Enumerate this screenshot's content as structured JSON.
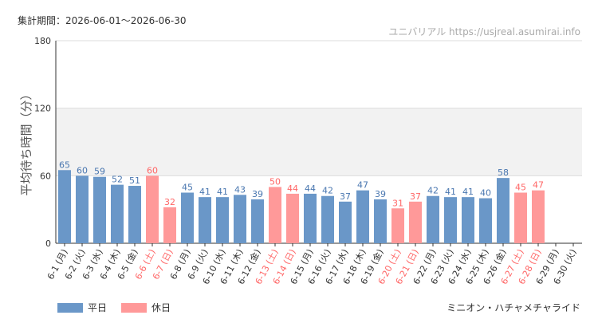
{
  "header": {
    "period": "集計期間：2026-06-01〜2026-06-30",
    "watermark": "ユニバリアル  https://usjreal.asumirai.info"
  },
  "footer": {
    "attraction": "ミニオン・ハチャメチャライド",
    "legend": [
      {
        "label": "平日",
        "color": "#6a97c8"
      },
      {
        "label": "休日",
        "color": "#ff9999"
      }
    ]
  },
  "chart_data": {
    "type": "bar",
    "ylabel": "平均待ち時間（分）",
    "ylim": [
      0,
      180
    ],
    "yticks": [
      0,
      60,
      120,
      180
    ],
    "highlight_band": [
      60,
      120
    ],
    "colors": {
      "weekday": "#6a97c8",
      "holiday": "#ff9999",
      "weekday_text": "#4a77b0",
      "holiday_text": "#ff6666"
    },
    "categories": [
      "6-1 (月)",
      "6-2 (火)",
      "6-3 (水)",
      "6-4 (木)",
      "6-5 (金)",
      "6-6 (土)",
      "6-7 (日)",
      "6-8 (月)",
      "6-9 (火)",
      "6-10 (水)",
      "6-11 (木)",
      "6-12 (金)",
      "6-13 (土)",
      "6-14 (日)",
      "6-15 (月)",
      "6-16 (火)",
      "6-17 (水)",
      "6-18 (木)",
      "6-19 (金)",
      "6-20 (土)",
      "6-21 (日)",
      "6-22 (月)",
      "6-23 (火)",
      "6-24 (水)",
      "6-25 (木)",
      "6-26 (金)",
      "6-27 (土)",
      "6-28 (日)",
      "6-29 (月)",
      "6-30 (火)"
    ],
    "values": [
      65,
      60,
      59,
      52,
      51,
      60,
      32,
      45,
      41,
      41,
      43,
      39,
      50,
      44,
      44,
      42,
      37,
      47,
      39,
      31,
      37,
      42,
      41,
      41,
      40,
      58,
      45,
      47,
      null,
      null
    ],
    "holiday": [
      false,
      false,
      false,
      false,
      false,
      true,
      true,
      false,
      false,
      false,
      false,
      false,
      true,
      true,
      false,
      false,
      false,
      false,
      false,
      true,
      true,
      false,
      false,
      false,
      false,
      false,
      true,
      true,
      false,
      false
    ]
  }
}
